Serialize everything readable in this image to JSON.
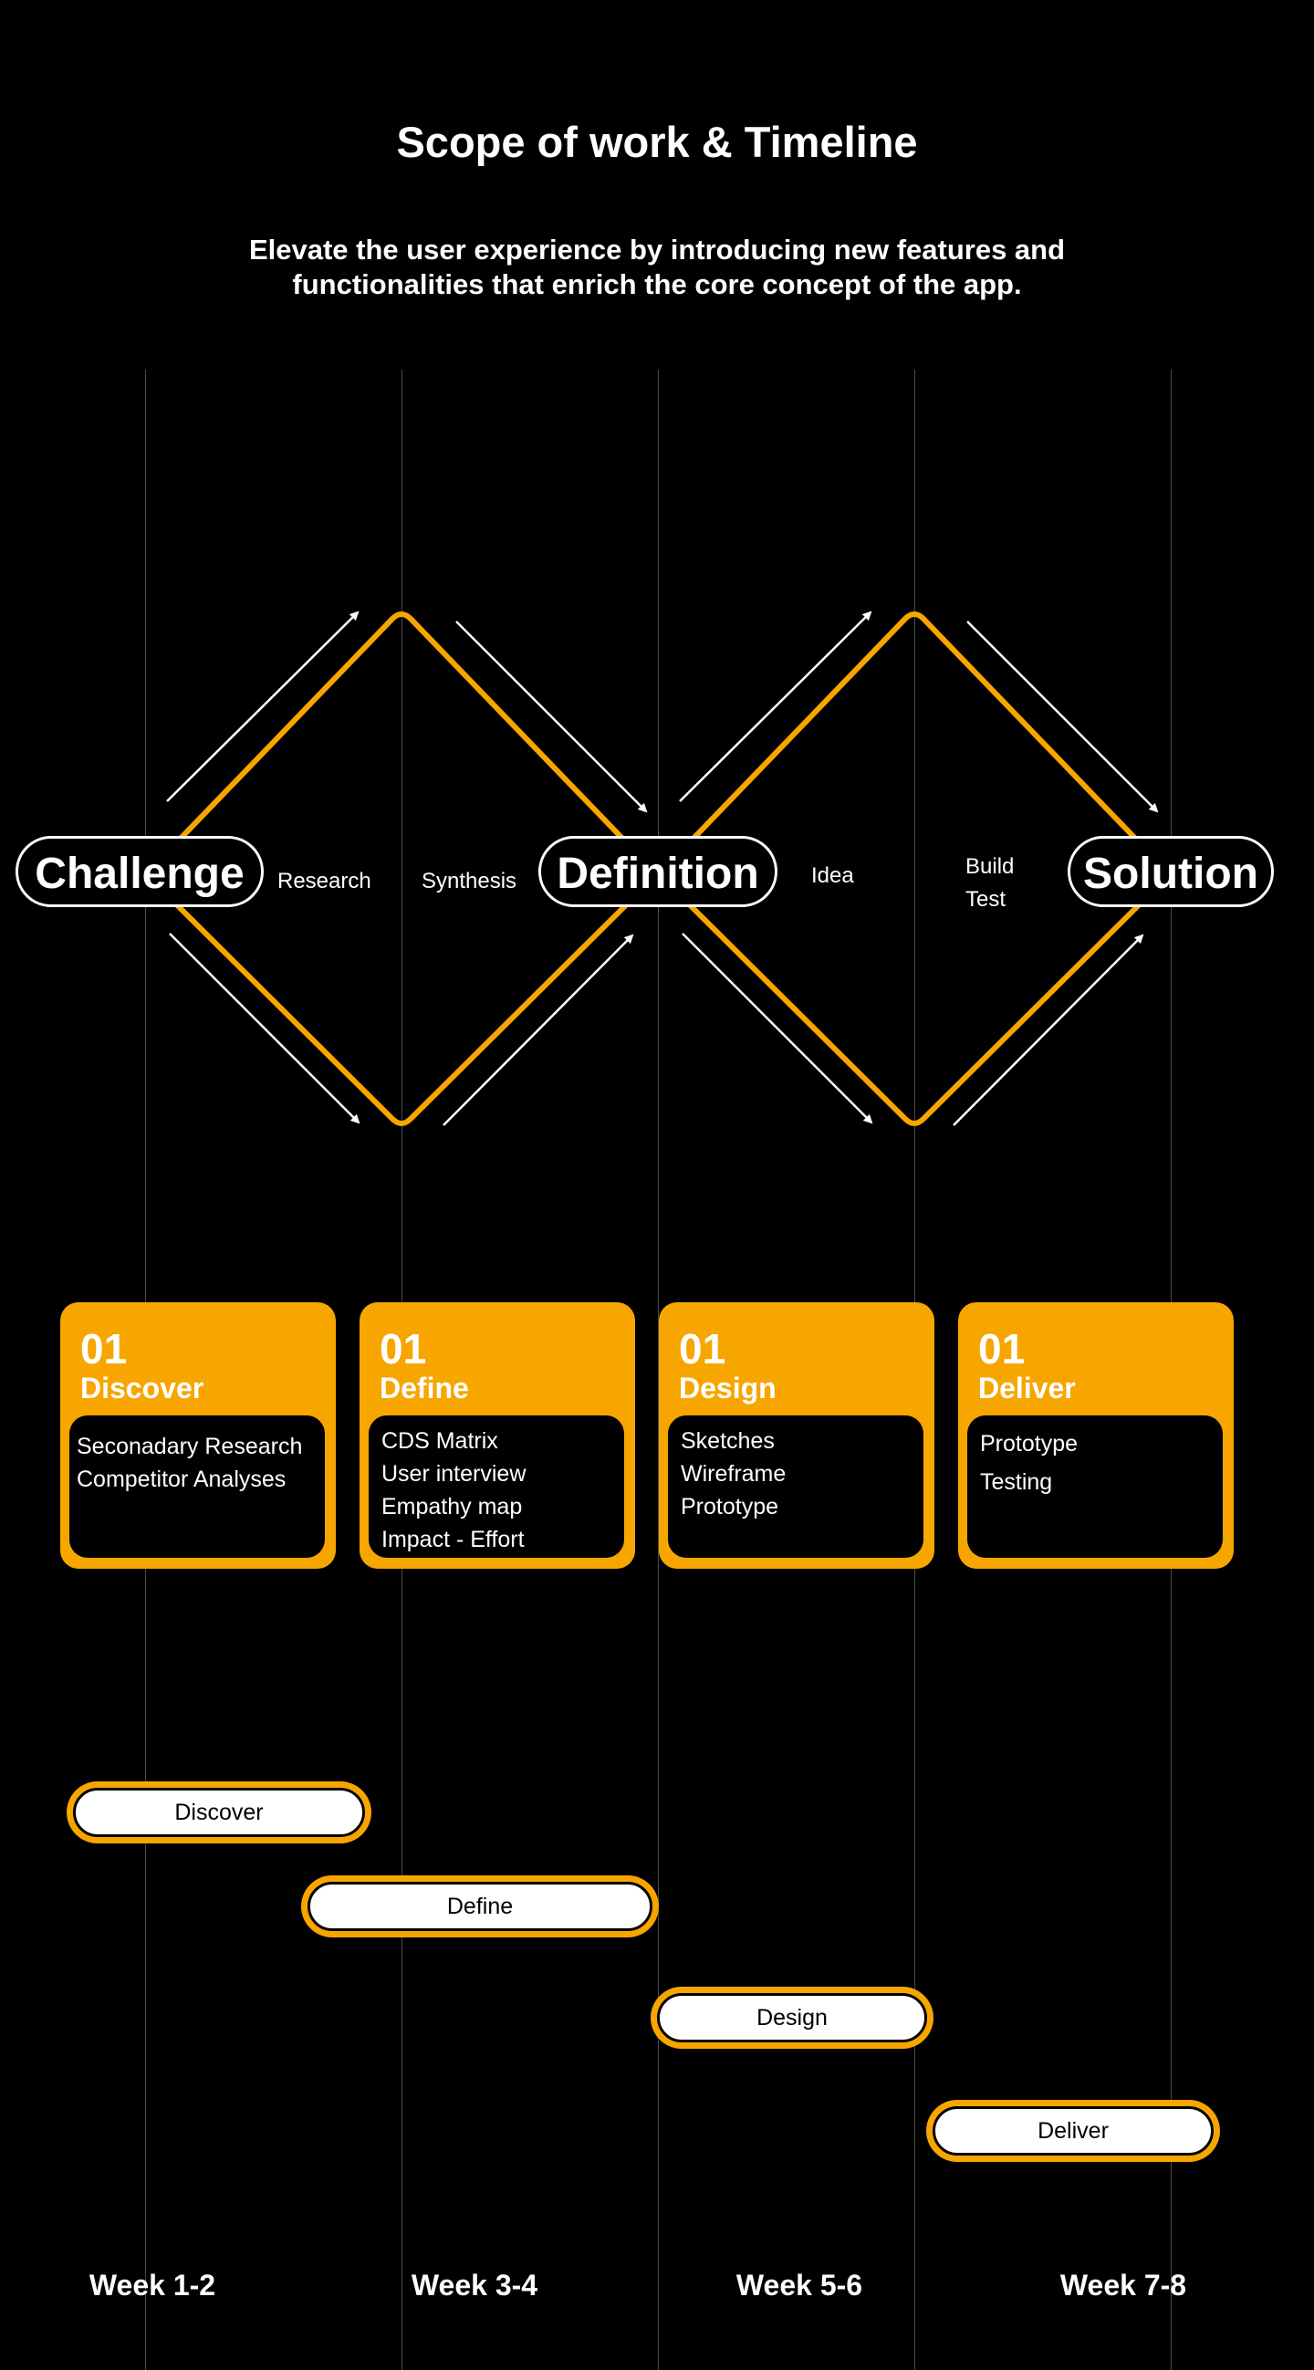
{
  "header": {
    "title": "Scope of work & Timeline",
    "subtitle_line1": "Elevate the user experience by introducing new features and",
    "subtitle_line2": "functionalities that enrich the core concept of the app."
  },
  "diagram": {
    "nodes": [
      "Challenge",
      "Definition",
      "Solution"
    ],
    "labels": {
      "research": "Research",
      "synthesis": "Synthesis",
      "idea": "Idea",
      "build": "Build",
      "test": "Test"
    },
    "colors": {
      "accent": "#f7a600",
      "stroke": "#ffffff",
      "background": "#000000"
    }
  },
  "phases": [
    {
      "number": "01",
      "name": "Discover",
      "items": [
        "Seconadary Research",
        "Competitor Analyses"
      ]
    },
    {
      "number": "01",
      "name": "Define",
      "items": [
        "CDS Matrix",
        "User interview",
        "Empathy map",
        "Impact - Effort"
      ]
    },
    {
      "number": "01",
      "name": "Design",
      "items": [
        "Sketches",
        "Wireframe",
        "Prototype"
      ]
    },
    {
      "number": "01",
      "name": "Deliver",
      "items": [
        "Prototype",
        "Testing"
      ]
    }
  ],
  "timeline": {
    "bars": [
      "Discover",
      "Define",
      "Design",
      "Deliver"
    ],
    "weeks": [
      "Week 1-2",
      "Week 3-4",
      "Week 5-6",
      "Week 7-8"
    ]
  }
}
